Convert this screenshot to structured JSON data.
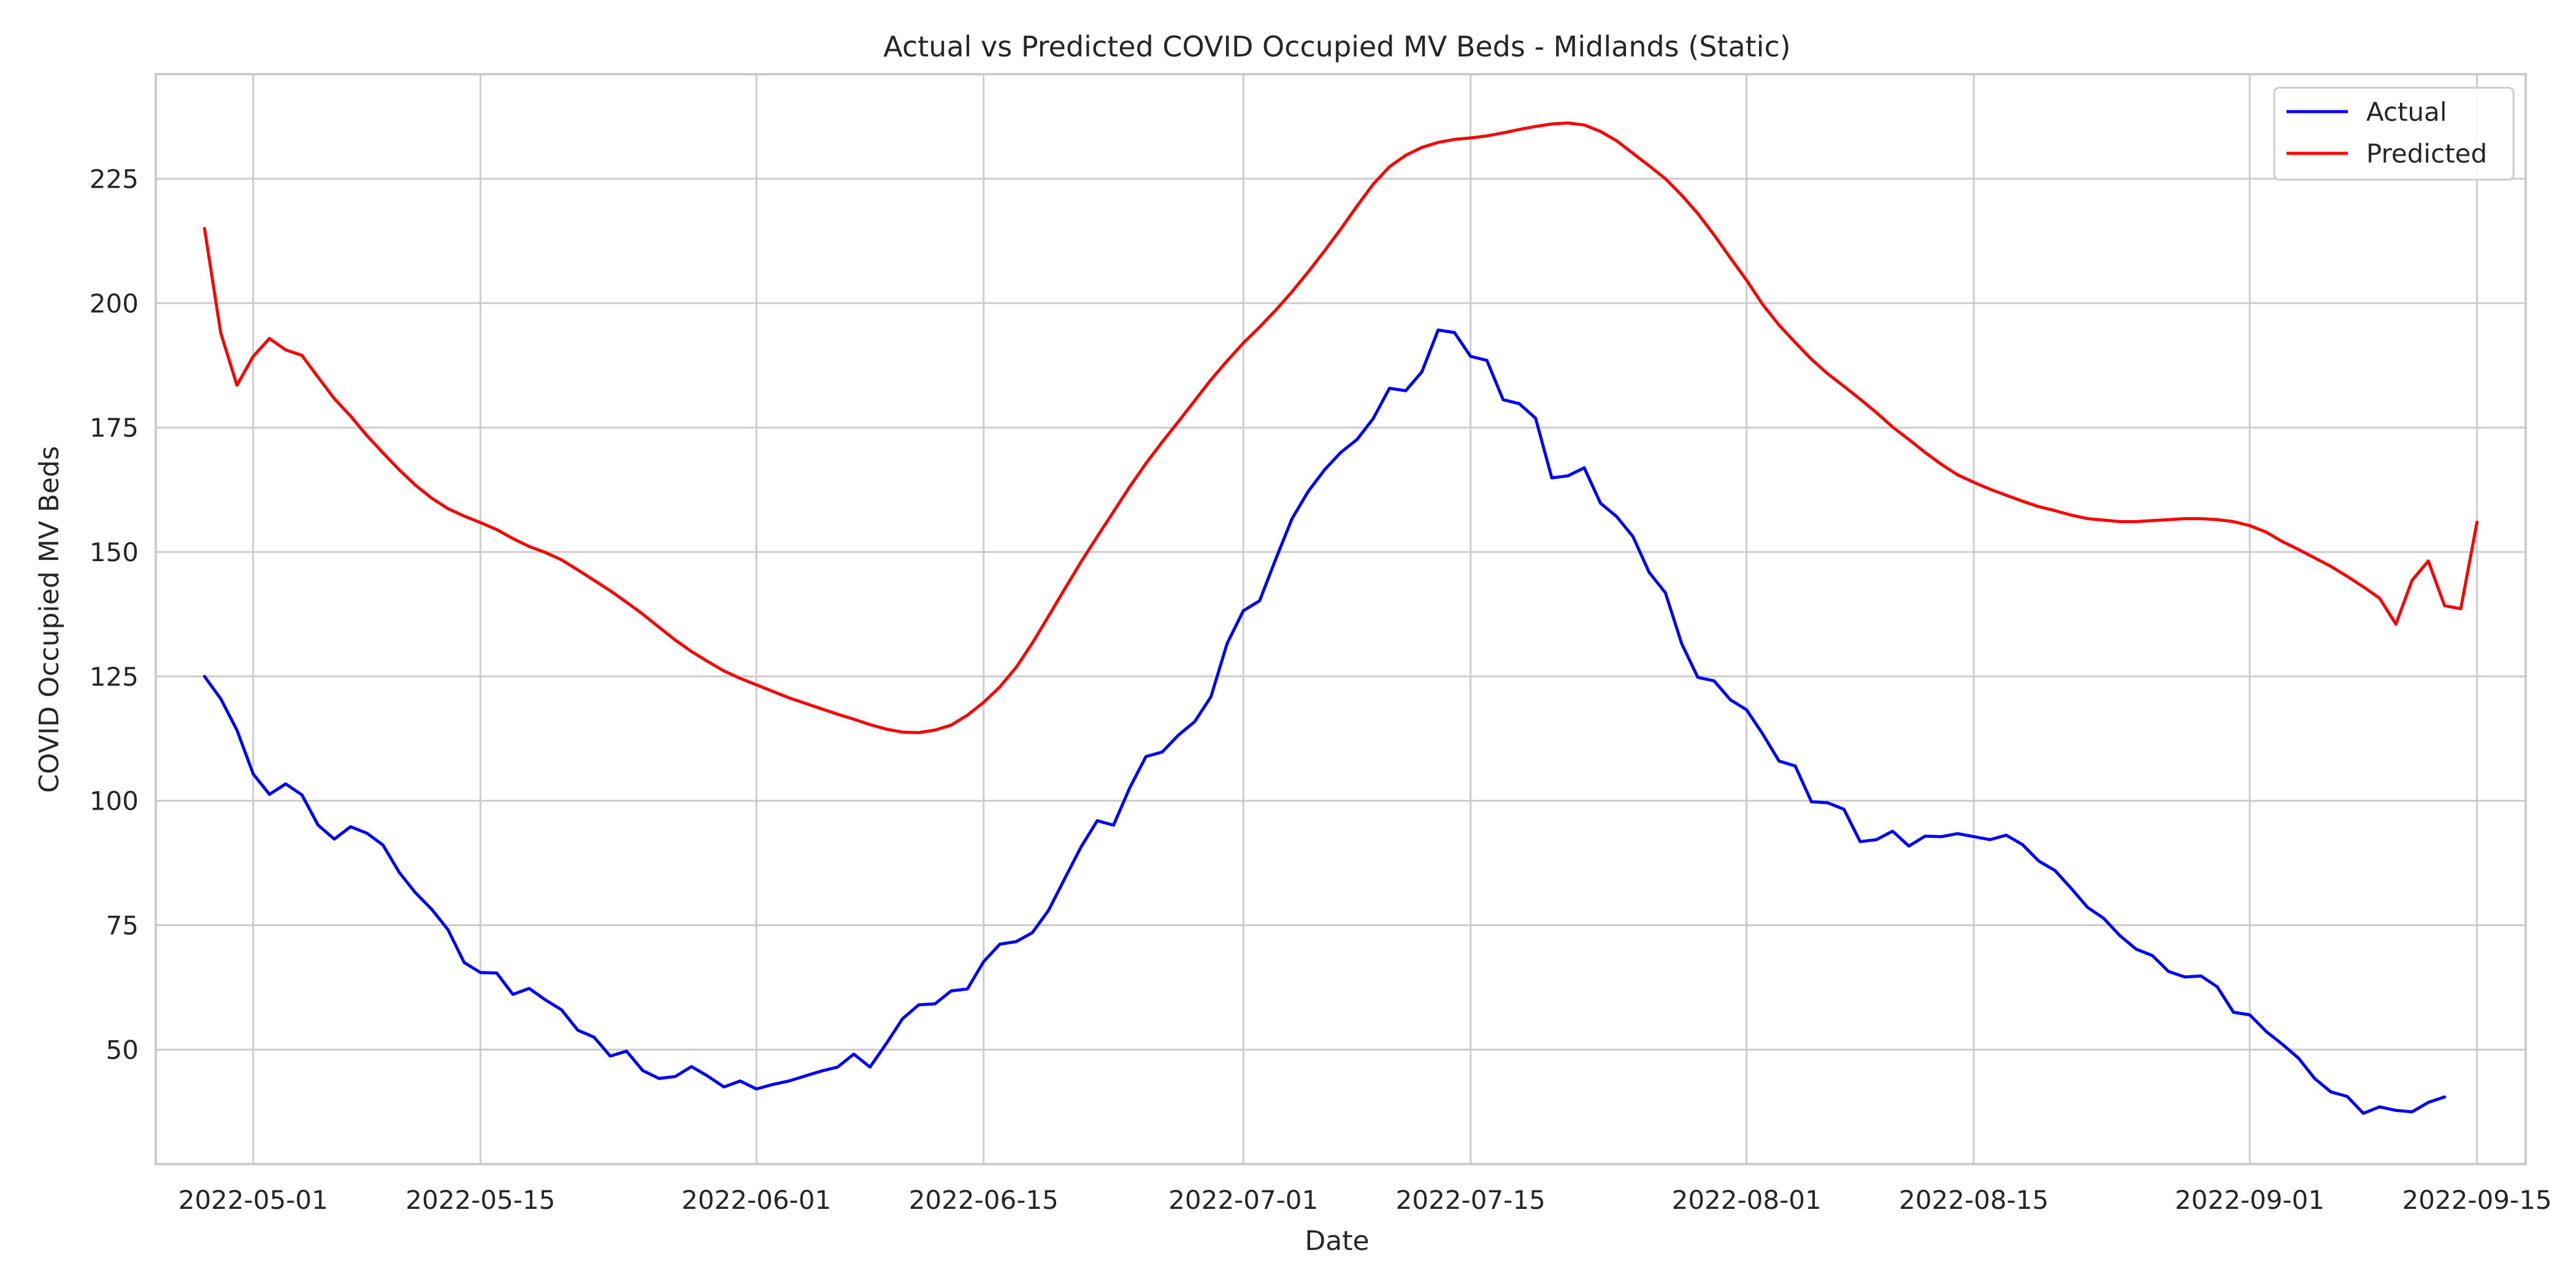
{
  "chart_data": {
    "type": "line",
    "title": "Actual vs Predicted COVID Occupied MV Beds - Midlands (Static)",
    "xlabel": "Date",
    "ylabel": "COVID Occupied MV Beds",
    "x_start": "2022-04-28",
    "x_end": "2022-09-12",
    "xlim": [
      "2022-04-25",
      "2022-09-18"
    ],
    "ylim": [
      27,
      246
    ],
    "x_ticks": [
      "2022-05-01",
      "2022-05-15",
      "2022-06-01",
      "2022-06-15",
      "2022-07-01",
      "2022-07-15",
      "2022-08-01",
      "2022-08-15",
      "2022-09-01",
      "2022-09-15"
    ],
    "y_ticks": [
      50,
      75,
      100,
      125,
      150,
      175,
      200,
      225
    ],
    "grid": true,
    "legend_position": "top-right",
    "series": [
      {
        "name": "Actual",
        "color": "#0000ff",
        "values": [
          125,
          120.5,
          114.2,
          105.4,
          101.3,
          103.4,
          101.2,
          95.1,
          92.3,
          94.8,
          93.5,
          91.1,
          85.6,
          81.5,
          78.2,
          74.1,
          67.5,
          65.5,
          65.4,
          61.1,
          62.3,
          60,
          58,
          53.9,
          52.5,
          48.7,
          49.7,
          45.8,
          44.2,
          44.6,
          46.6,
          44.7,
          42.5,
          43.7,
          42.1,
          43,
          43.7,
          44.7,
          45.7,
          46.5,
          49.1,
          46.5,
          51.2,
          56.2,
          59,
          59.2,
          61.8,
          62.2,
          67.7,
          71.2,
          71.7,
          73.5,
          78,
          84.4,
          90.7,
          96,
          95.1,
          102.6,
          108.9,
          109.8,
          113.2,
          115.9,
          120.9,
          131.6,
          138.2,
          140.2,
          148.6,
          156.7,
          162.2,
          166.5,
          170,
          172.6,
          176.8,
          182.9,
          182.4,
          186.2,
          194.6,
          194.1,
          189.3,
          188.5,
          180.6,
          179.8,
          176.9,
          164.9,
          165.3,
          166.9,
          159.8,
          157.1,
          153.1,
          145.9,
          141.8,
          131.6,
          124.8,
          124.1,
          120.3,
          118.3,
          113.4,
          108,
          107,
          99.8,
          99.6,
          98.3,
          91.8,
          92.2,
          93.9,
          90.9,
          92.9,
          92.8,
          93.4,
          92.8,
          92.2,
          93.1,
          91.2,
          87.9,
          86,
          82.4,
          78.6,
          76.4,
          72.9,
          70.2,
          68.9,
          65.7,
          64.6,
          64.8,
          62.6,
          57.5,
          57,
          53.7,
          51.1,
          48.3,
          44.2,
          41.5,
          40.6,
          37.2,
          38.5,
          37.8,
          37.5,
          39.4,
          40.5
        ]
      },
      {
        "name": "Predicted",
        "color": "#ff0000",
        "values": [
          215,
          194,
          183.5,
          189.3,
          192.9,
          190.6,
          189.5,
          185.1,
          180.8,
          177.3,
          173.4,
          169.9,
          166.5,
          163.4,
          160.8,
          158.7,
          157.2,
          155.9,
          154.5,
          152.7,
          151.1,
          149.9,
          148.4,
          146.4,
          144.3,
          142.2,
          139.9,
          137.5,
          134.9,
          132.3,
          130,
          128,
          126.1,
          124.6,
          123.3,
          122,
          120.7,
          119.6,
          118.5,
          117.4,
          116.4,
          115.3,
          114.4,
          113.8,
          113.7,
          114.2,
          115.2,
          117.2,
          119.8,
          122.9,
          126.8,
          131.7,
          137.1,
          142.6,
          148,
          153.1,
          158.1,
          163.1,
          167.8,
          172.1,
          176.2,
          180.4,
          184.6,
          188.4,
          192,
          195.2,
          198.6,
          202.3,
          206.3,
          210.5,
          214.9,
          219.5,
          223.9,
          227.4,
          229.7,
          231.3,
          232.3,
          232.9,
          233.2,
          233.6,
          234.2,
          234.9,
          235.5,
          236,
          236.2,
          235.8,
          234.5,
          232.6,
          230.1,
          227.6,
          225,
          221.7,
          218,
          213.7,
          209.1,
          204.6,
          199.7,
          195.6,
          192.1,
          188.7,
          185.8,
          183.3,
          180.7,
          178,
          175.1,
          172.6,
          170,
          167.6,
          165.5,
          164,
          162.6,
          161.4,
          160.2,
          159.1,
          158.3,
          157.4,
          156.7,
          156.4,
          156.1,
          156.1,
          156.3,
          156.5,
          156.7,
          156.7,
          156.5,
          156.1,
          155.3,
          154,
          152.1,
          150.5,
          148.8,
          147.1,
          145.1,
          143,
          140.7,
          135.5,
          144.3,
          148.2,
          139.2,
          138.6,
          156
        ]
      }
    ]
  }
}
